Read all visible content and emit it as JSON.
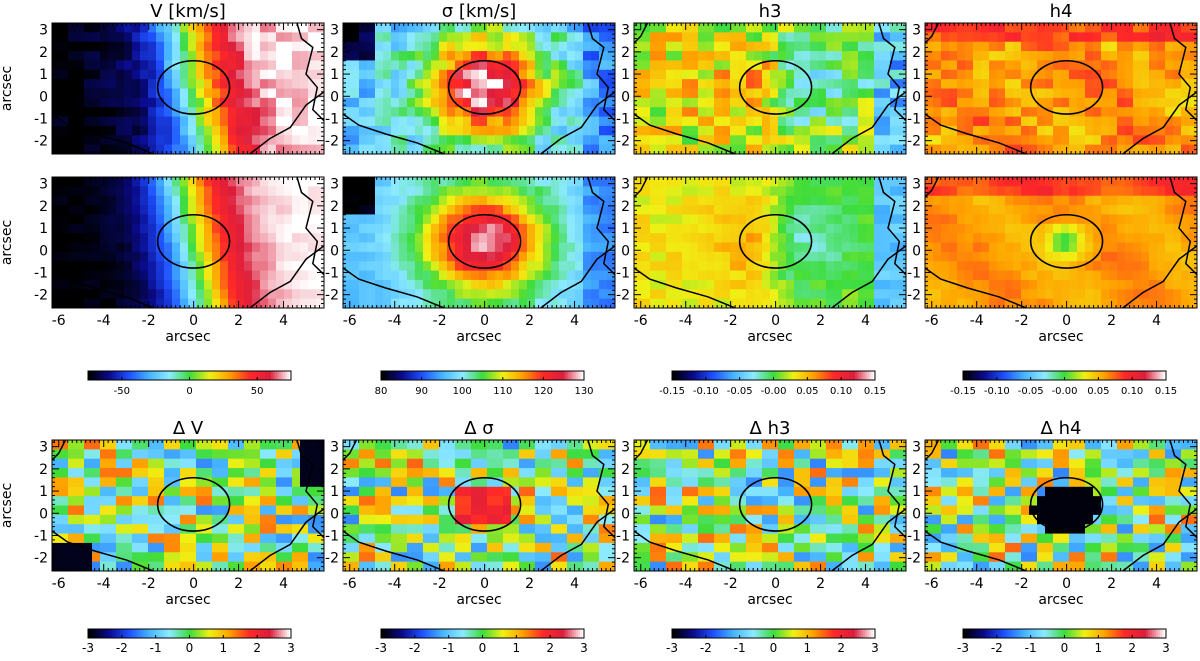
{
  "figure": {
    "columns": [
      "V",
      "sigma",
      "h3",
      "h4"
    ],
    "axis_label": "arcsec",
    "x_ticks": [
      -6,
      -4,
      -2,
      0,
      2,
      4
    ],
    "x_range": [
      -6.3,
      5.8
    ],
    "y_ticks": [
      -2,
      -1,
      0,
      1,
      2,
      3
    ],
    "y_range": [
      -2.6,
      3.3
    ],
    "ellipse": {
      "cx": 0.0,
      "cy": 0.4,
      "rx": 1.6,
      "ry": 1.2
    }
  },
  "chart_data": [
    {
      "type": "heatmap",
      "row": "top",
      "col": 0,
      "title": "V [km/s]",
      "field": "velocity",
      "xlabel": "",
      "ylabel": "arcsec",
      "xlim": [
        -6.3,
        5.8
      ],
      "ylim": [
        -2.6,
        3.3
      ]
    },
    {
      "type": "heatmap",
      "row": "top",
      "col": 1,
      "title": "σ [km/s]",
      "field": "dispersion",
      "xlabel": "",
      "ylabel": "",
      "xlim": [
        -6.3,
        5.8
      ],
      "ylim": [
        -2.6,
        3.3
      ]
    },
    {
      "type": "heatmap",
      "row": "top",
      "col": 2,
      "title": "h3",
      "field": "h3",
      "xlabel": "",
      "ylabel": "",
      "xlim": [
        -6.3,
        5.8
      ],
      "ylim": [
        -2.6,
        3.3
      ]
    },
    {
      "type": "heatmap",
      "row": "top",
      "col": 3,
      "title": "h4",
      "field": "h4",
      "xlabel": "",
      "ylabel": "",
      "xlim": [
        -6.3,
        5.8
      ],
      "ylim": [
        -2.6,
        3.3
      ]
    },
    {
      "type": "heatmap",
      "row": "middle",
      "col": 0,
      "title": "",
      "field": "velocity",
      "xlabel": "arcsec",
      "ylabel": "arcsec",
      "xlim": [
        -6.3,
        5.8
      ],
      "ylim": [
        -2.6,
        3.3
      ]
    },
    {
      "type": "heatmap",
      "row": "middle",
      "col": 1,
      "title": "",
      "field": "dispersion",
      "xlabel": "arcsec",
      "ylabel": "",
      "xlim": [
        -6.3,
        5.8
      ],
      "ylim": [
        -2.6,
        3.3
      ]
    },
    {
      "type": "heatmap",
      "row": "middle",
      "col": 2,
      "title": "",
      "field": "h3",
      "xlabel": "arcsec",
      "ylabel": "",
      "xlim": [
        -6.3,
        5.8
      ],
      "ylim": [
        -2.6,
        3.3
      ]
    },
    {
      "type": "heatmap",
      "row": "middle",
      "col": 3,
      "title": "",
      "field": "h4",
      "xlabel": "arcsec",
      "ylabel": "",
      "xlim": [
        -6.3,
        5.8
      ],
      "ylim": [
        -2.6,
        3.3
      ]
    },
    {
      "type": "heatmap",
      "row": "bottom",
      "col": 0,
      "title": "Δ V",
      "field": "residual",
      "xlabel": "arcsec",
      "ylabel": "arcsec",
      "xlim": [
        -6.3,
        5.8
      ],
      "ylim": [
        -2.6,
        3.3
      ]
    },
    {
      "type": "heatmap",
      "row": "bottom",
      "col": 1,
      "title": "Δ σ",
      "field": "residual",
      "xlabel": "arcsec",
      "ylabel": "",
      "xlim": [
        -6.3,
        5.8
      ],
      "ylim": [
        -2.6,
        3.3
      ]
    },
    {
      "type": "heatmap",
      "row": "bottom",
      "col": 2,
      "title": "Δ h3",
      "field": "residual",
      "xlabel": "arcsec",
      "ylabel": "",
      "xlim": [
        -6.3,
        5.8
      ],
      "ylim": [
        -2.6,
        3.3
      ]
    },
    {
      "type": "heatmap",
      "row": "bottom",
      "col": 3,
      "title": "Δ h4",
      "field": "residual",
      "xlabel": "arcsec",
      "ylabel": "",
      "xlim": [
        -6.3,
        5.8
      ],
      "ylim": [
        -2.6,
        3.3
      ]
    }
  ],
  "colorbars": [
    {
      "group": "kinematic",
      "col": 0,
      "range": [
        -75,
        75
      ],
      "ticks": [
        -50,
        0,
        50
      ],
      "tick_labels": [
        "-50",
        "0",
        "50"
      ]
    },
    {
      "group": "kinematic",
      "col": 1,
      "range": [
        80,
        130
      ],
      "ticks": [
        80,
        90,
        100,
        110,
        120,
        130
      ],
      "tick_labels": [
        "80",
        "90",
        "100",
        "110",
        "120",
        "130"
      ]
    },
    {
      "group": "kinematic",
      "col": 2,
      "range": [
        -0.15,
        0.15
      ],
      "ticks": [
        -0.15,
        -0.1,
        -0.05,
        0.0,
        0.05,
        0.1,
        0.15
      ],
      "tick_labels": [
        "-0.15",
        "-0.10",
        "-0.05",
        "-0.00",
        "0.05",
        "0.10",
        "0.15"
      ]
    },
    {
      "group": "kinematic",
      "col": 3,
      "range": [
        -0.15,
        0.15
      ],
      "ticks": [
        -0.15,
        -0.1,
        -0.05,
        0.0,
        0.05,
        0.1,
        0.15
      ],
      "tick_labels": [
        "-0.15",
        "-0.10",
        "-0.05",
        "-0.00",
        "0.05",
        "0.10",
        "0.15"
      ]
    },
    {
      "group": "residual",
      "col": 0,
      "range": [
        -3,
        3
      ],
      "ticks": [
        -3,
        -2,
        -1,
        0,
        1,
        2,
        3
      ],
      "tick_labels": [
        "-3",
        "-2",
        "-1",
        "0",
        "1",
        "2",
        "3"
      ]
    },
    {
      "group": "residual",
      "col": 1,
      "range": [
        -3,
        3
      ],
      "ticks": [
        -3,
        -2,
        -1,
        0,
        1,
        2,
        3
      ],
      "tick_labels": [
        "-3",
        "-2",
        "-1",
        "0",
        "1",
        "2",
        "3"
      ]
    },
    {
      "group": "residual",
      "col": 2,
      "range": [
        -3,
        3
      ],
      "ticks": [
        -3,
        -2,
        -1,
        0,
        1,
        2,
        3
      ],
      "tick_labels": [
        "-3",
        "-2",
        "-1",
        "0",
        "1",
        "2",
        "3"
      ]
    },
    {
      "group": "residual",
      "col": 3,
      "range": [
        -3,
        3
      ],
      "ticks": [
        -3,
        -2,
        -1,
        0,
        1,
        2,
        3
      ],
      "tick_labels": [
        "-3",
        "-2",
        "-1",
        "0",
        "1",
        "2",
        "3"
      ]
    }
  ],
  "colormap": [
    "#000000",
    "#0a0a8c",
    "#1e50ff",
    "#46b4ff",
    "#8ceaff",
    "#3cdc3c",
    "#f0f014",
    "#ffa000",
    "#ff2828",
    "#dc1e3c",
    "#ffffff"
  ]
}
